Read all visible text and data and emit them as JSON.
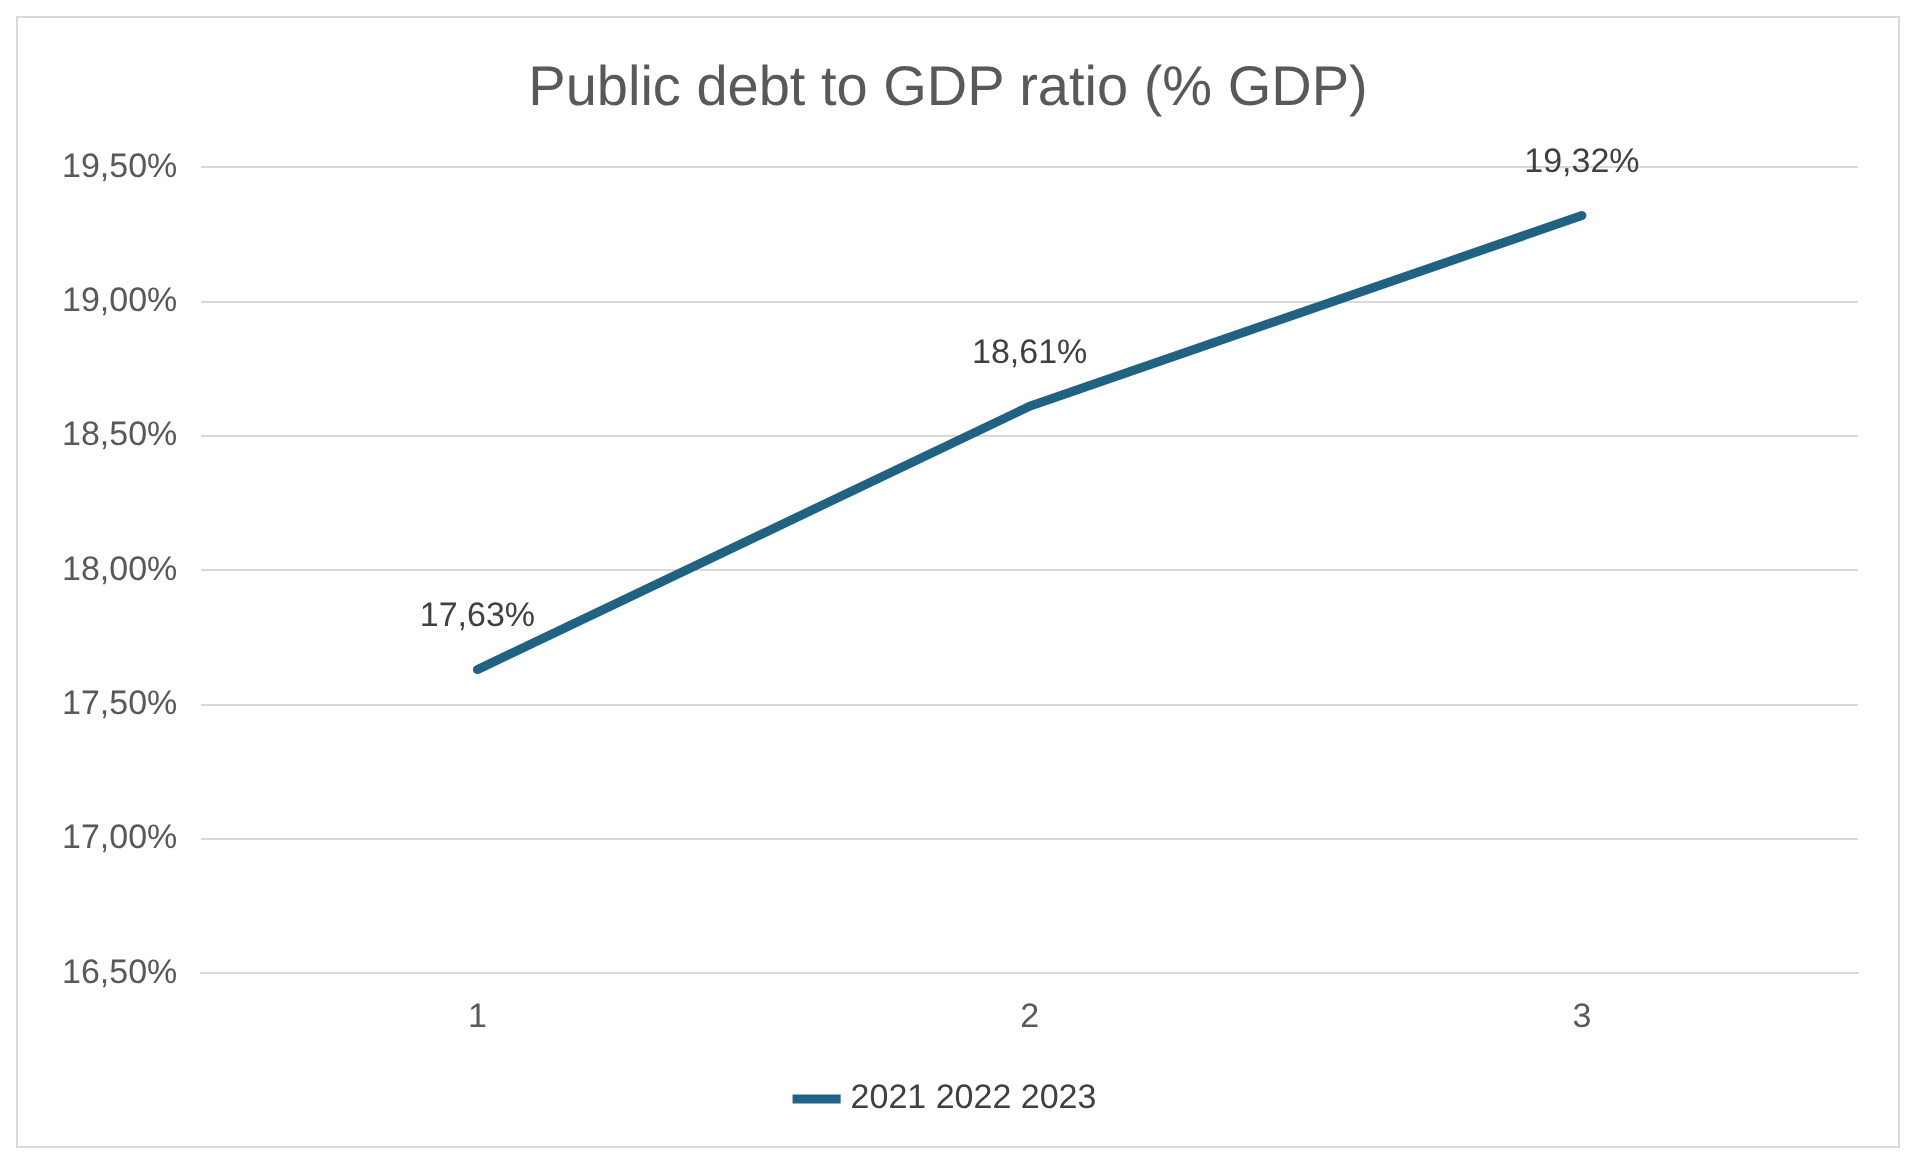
{
  "chart_data": {
    "type": "line",
    "title": "Public debt to GDP ratio (% GDP)",
    "categories": [
      "1",
      "2",
      "3"
    ],
    "series": [
      {
        "name": "2021 2022 2023",
        "color": "#1f6282",
        "values": [
          17.63,
          18.61,
          19.32
        ],
        "value_labels": [
          "17,63%",
          "18,61%",
          "19,32%"
        ]
      }
    ],
    "ylim": [
      16.5,
      19.5
    ],
    "yticks": [
      {
        "value": 16.5,
        "label": "16,50%"
      },
      {
        "value": 17,
        "label": "17,00%"
      },
      {
        "value": 17.5,
        "label": "17,50%"
      },
      {
        "value": 18,
        "label": "18,00%"
      },
      {
        "value": 18.5,
        "label": "18,50%"
      },
      {
        "value": 19,
        "label": "19,00%"
      },
      {
        "value": 19.5,
        "label": "19,50%"
      }
    ],
    "grid": "y",
    "legend": "bottom",
    "marker": "none"
  }
}
